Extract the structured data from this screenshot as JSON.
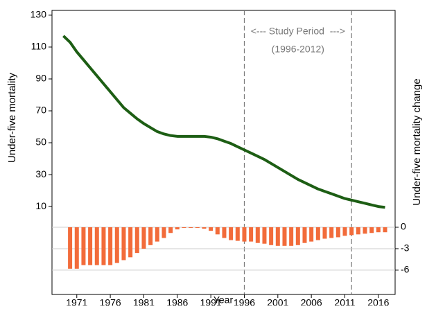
{
  "chart_data": [
    {
      "type": "line",
      "ylabel": "Under-five mortality",
      "annotations": [
        "<--- Study Period  --->",
        "(1996-2012)"
      ],
      "vlines": [
        1996,
        2012
      ],
      "x": [
        1969,
        1970,
        1971,
        1972,
        1973,
        1974,
        1975,
        1976,
        1977,
        1978,
        1979,
        1980,
        1981,
        1982,
        1983,
        1984,
        1985,
        1986,
        1987,
        1988,
        1989,
        1990,
        1991,
        1992,
        1993,
        1994,
        1995,
        1996,
        1997,
        1998,
        1999,
        2000,
        2001,
        2002,
        2003,
        2004,
        2005,
        2006,
        2007,
        2008,
        2009,
        2010,
        2011,
        2012,
        2013,
        2014,
        2015,
        2016,
        2017
      ],
      "series": [
        {
          "color": "#1d5e14",
          "values": [
            117,
            113,
            107,
            102,
            97,
            92,
            87,
            82,
            77,
            72,
            68.5,
            65,
            62,
            59.5,
            57,
            55.5,
            54.5,
            54,
            54,
            54,
            54,
            54,
            53.5,
            52.5,
            51,
            49.5,
            47.5,
            45.5,
            43.5,
            41.5,
            39.5,
            37,
            34.5,
            32,
            29.5,
            27,
            25,
            23,
            21,
            19.5,
            18,
            16.5,
            15,
            14,
            13,
            12,
            11,
            10,
            9.5
          ]
        }
      ],
      "xlim": [
        1967.3,
        2018.5
      ],
      "ylim": [
        -3,
        133
      ],
      "yticks": [
        10,
        30,
        50,
        70,
        90,
        110,
        130
      ]
    },
    {
      "type": "bar",
      "ylabel": "Under-five mortality change",
      "xlabel": "Year",
      "x": [
        1970,
        1971,
        1972,
        1973,
        1974,
        1975,
        1976,
        1977,
        1978,
        1979,
        1980,
        1981,
        1982,
        1983,
        1984,
        1985,
        1986,
        1987,
        1988,
        1989,
        1990,
        1991,
        1992,
        1993,
        1994,
        1995,
        1996,
        1997,
        1998,
        1999,
        2000,
        2001,
        2002,
        2003,
        2004,
        2005,
        2006,
        2007,
        2008,
        2009,
        2010,
        2011,
        2012,
        2013,
        2014,
        2015,
        2016,
        2017
      ],
      "series": [
        {
          "color": "#f26b3a",
          "values": [
            -5.8,
            -5.8,
            -5.3,
            -5.3,
            -5.3,
            -5.3,
            -5.3,
            -5,
            -4.6,
            -4.2,
            -3.6,
            -3,
            -2.5,
            -2,
            -1.5,
            -0.8,
            -0.3,
            -0.1,
            -0.1,
            -0.1,
            -0.2,
            -0.5,
            -1,
            -1.5,
            -1.8,
            -1.9,
            -2,
            -2,
            -2.2,
            -2.3,
            -2.5,
            -2.6,
            -2.6,
            -2.6,
            -2.5,
            -2.2,
            -2,
            -1.8,
            -1.6,
            -1.5,
            -1.4,
            -1.2,
            -1.1,
            -1,
            -0.9,
            -0.8,
            -0.7,
            -0.7
          ]
        }
      ],
      "xlim": [
        1967.3,
        2018.5
      ],
      "ylim": [
        -9.4,
        0
      ],
      "yticks": [
        0,
        -3,
        -6
      ],
      "xticks": [
        1971,
        1976,
        1981,
        1986,
        1991,
        1996,
        2001,
        2006,
        2011,
        2016
      ],
      "grid": true
    }
  ]
}
